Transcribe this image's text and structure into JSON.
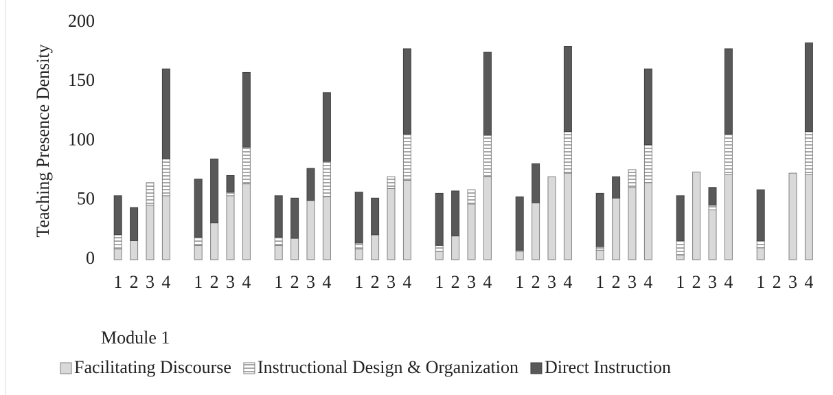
{
  "chart_data": {
    "type": "bar",
    "stacked": true,
    "ylabel": "Teaching Presence Density",
    "annotation": "Module 1",
    "categories": [
      "1",
      "2",
      "3",
      "4",
      "1",
      "2",
      "3",
      "4",
      "1",
      "2",
      "3",
      "4",
      "1",
      "2",
      "3",
      "4",
      "1",
      "2",
      "3",
      "4",
      "1",
      "2",
      "3",
      "4",
      "1",
      "2",
      "3",
      "4",
      "1",
      "2",
      "3",
      "4",
      "1",
      "2",
      "3",
      "4"
    ],
    "series": [
      {
        "name": "Facilitating Discourse",
        "color": "#d9d9d9",
        "pattern": "solid",
        "values": [
          9,
          16,
          46,
          54,
          12,
          31,
          54,
          64,
          12,
          18,
          50,
          53,
          9,
          21,
          60,
          67,
          7,
          20,
          47,
          70,
          7,
          48,
          70,
          73,
          8,
          52,
          61,
          65,
          4,
          74,
          42,
          72,
          10,
          0,
          73,
          72
        ]
      },
      {
        "name": "Instructional Design & Organization",
        "color": "#a6a6a6",
        "pattern": "stripes",
        "values": [
          12,
          0,
          19,
          31,
          7,
          0,
          3,
          31,
          7,
          0,
          0,
          30,
          5,
          0,
          10,
          39,
          5,
          0,
          12,
          35,
          1,
          0,
          0,
          35,
          3,
          0,
          15,
          32,
          12,
          0,
          4,
          34,
          6,
          0,
          0,
          36
        ]
      },
      {
        "name": "Direct Instruction",
        "color": "#595959",
        "pattern": "solid",
        "values": [
          33,
          28,
          0,
          76,
          49,
          54,
          14,
          63,
          35,
          34,
          27,
          58,
          43,
          31,
          0,
          72,
          44,
          38,
          0,
          70,
          45,
          33,
          0,
          72,
          45,
          18,
          0,
          64,
          38,
          0,
          15,
          72,
          43,
          0,
          0,
          75
        ]
      }
    ],
    "ylim": [
      0,
      200
    ],
    "yticks": [
      0,
      50,
      100,
      150,
      200
    ],
    "grid": false
  }
}
